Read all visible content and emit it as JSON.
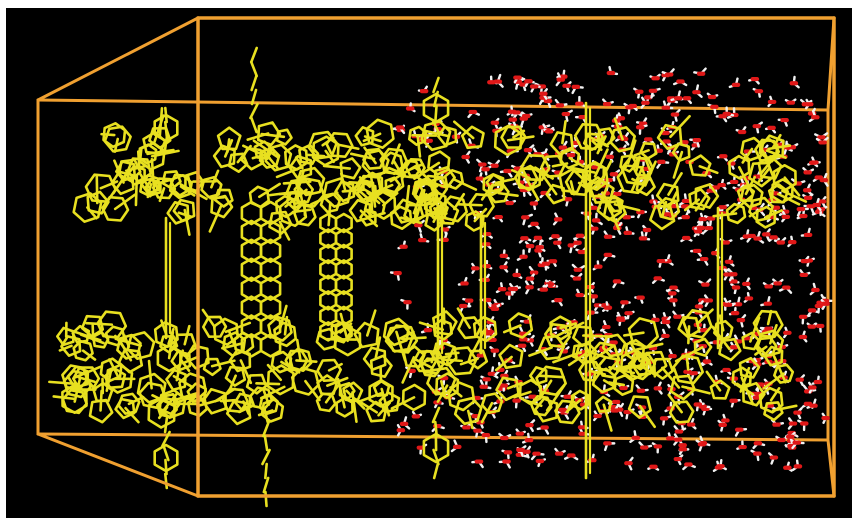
{
  "scene": {
    "background": "#000000",
    "frame_background": "#ffffff",
    "colors": {
      "box": "#f0a030",
      "framework": "#e8e020",
      "oxygen": "#e01818",
      "hydrogen": "#f2f2f2"
    },
    "objects": [
      "simulation-box",
      "framework",
      "water-molecules"
    ]
  }
}
